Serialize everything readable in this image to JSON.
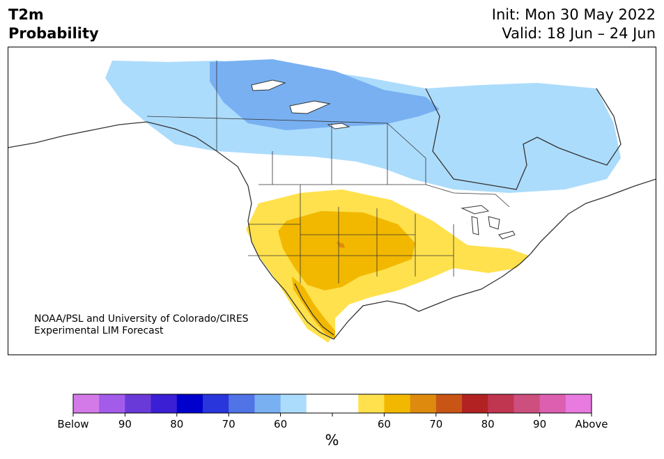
{
  "title": {
    "left_line1": "T2m",
    "left_line2": "Probability",
    "init": "Init: Mon 30 May 2022",
    "valid": "Valid: 18 Jun – 24 Jun"
  },
  "credit": {
    "line1": "NOAA/PSL and University of Colorado/CIRES",
    "line2": "Experimental LIM Forecast"
  },
  "colorbar": {
    "unit": "%",
    "colors": [
      "#d47ae8",
      "#a35bea",
      "#6a3ad9",
      "#3a1fd4",
      "#0000cc",
      "#2836db",
      "#5073e6",
      "#78b0f2",
      "#acdcfc",
      "#ffffff",
      "#ffffff",
      "#ffe14d",
      "#f2b800",
      "#dd8a0e",
      "#c85516",
      "#b22222",
      "#c03550",
      "#cc4f7e",
      "#dc5fb0",
      "#e87ae0"
    ],
    "labels": [
      "Below",
      "90",
      "80",
      "70",
      "60",
      "60",
      "70",
      "80",
      "90",
      "Above"
    ]
  },
  "map_colors": {
    "below_60": "#acdcfc",
    "below_70": "#78b0f2",
    "above_60": "#ffe14d",
    "above_70": "#f2b800",
    "above_80": "#dd8a0e",
    "land": "#ffffff",
    "borders": "#333333"
  }
}
